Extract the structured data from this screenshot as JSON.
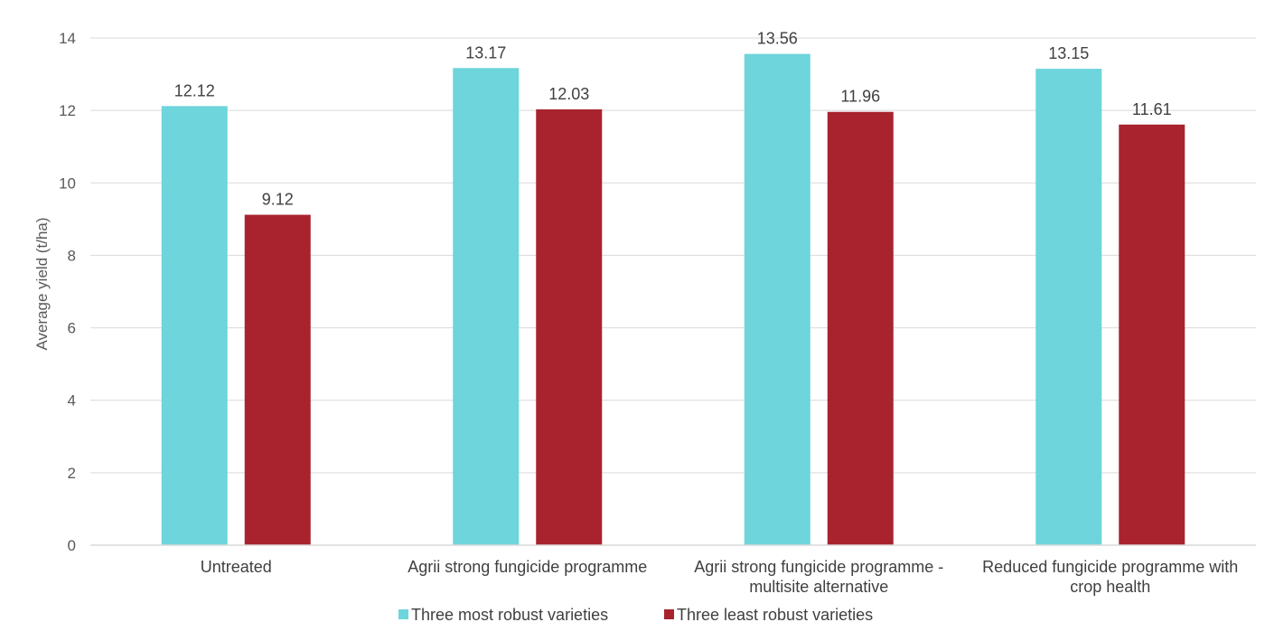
{
  "chart_data": {
    "type": "bar",
    "title": "",
    "xlabel": "",
    "ylabel": "Average yield (t/ha)",
    "ylim": [
      0,
      14
    ],
    "yticks": [
      0,
      2,
      4,
      6,
      8,
      10,
      12,
      14
    ],
    "grid": true,
    "legend_position": "bottom",
    "categories": [
      [
        "Untreated"
      ],
      [
        "Agrii strong fungicide programme"
      ],
      [
        "Agrii strong fungicide programme -",
        "multisite alternative"
      ],
      [
        "Reduced fungicide programme with",
        "crop health"
      ]
    ],
    "series": [
      {
        "name": "Three most robust varieties",
        "color": "#6DD5DB",
        "values": [
          12.12,
          13.17,
          13.56,
          13.15
        ]
      },
      {
        "name": "Three least robust varieties",
        "color": "#A8232E",
        "values": [
          9.12,
          12.03,
          11.96,
          11.61
        ]
      }
    ]
  }
}
